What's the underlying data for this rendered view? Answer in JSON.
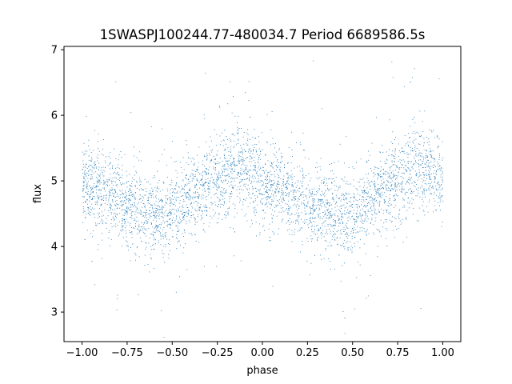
{
  "chart_data": {
    "type": "scatter",
    "title": "1SWASPJ100244.77-480034.7 Period 6689586.5s",
    "xlabel": "phase",
    "ylabel": "flux",
    "xlim": [
      -1.1,
      1.1
    ],
    "ylim": [
      2.55,
      7.05
    ],
    "xticks": [
      {
        "value": -1.0,
        "label": "−1.00"
      },
      {
        "value": -0.75,
        "label": "−0.75"
      },
      {
        "value": -0.5,
        "label": "−0.50"
      },
      {
        "value": -0.25,
        "label": "−0.25"
      },
      {
        "value": 0.0,
        "label": "0.00"
      },
      {
        "value": 0.25,
        "label": "0.25"
      },
      {
        "value": 0.5,
        "label": "0.50"
      },
      {
        "value": 0.75,
        "label": "0.75"
      },
      {
        "value": 1.0,
        "label": "1.00"
      }
    ],
    "yticks": [
      {
        "value": 3,
        "label": "3"
      },
      {
        "value": 4,
        "label": "4"
      },
      {
        "value": 5,
        "label": "5"
      },
      {
        "value": 6,
        "label": "6"
      },
      {
        "value": 7,
        "label": "7"
      }
    ],
    "grid": false,
    "series": [
      {
        "color": "#1f77b4",
        "phase_range": [
          -1.0,
          1.0
        ],
        "profile": {
          "phase": [
            0.0,
            0.05,
            0.1,
            0.15,
            0.2,
            0.25,
            0.3,
            0.35,
            0.4,
            0.45,
            0.5,
            0.55,
            0.6,
            0.65,
            0.7,
            0.75,
            0.8,
            0.85,
            0.9,
            0.95,
            1.0
          ],
          "flux": [
            4.95,
            4.9,
            4.85,
            4.8,
            4.7,
            4.65,
            4.6,
            4.55,
            4.5,
            4.45,
            4.5,
            4.6,
            4.75,
            4.85,
            4.95,
            5.0,
            5.1,
            5.2,
            5.2,
            5.1,
            4.95
          ]
        },
        "scatter_sd": 0.32
      }
    ]
  }
}
